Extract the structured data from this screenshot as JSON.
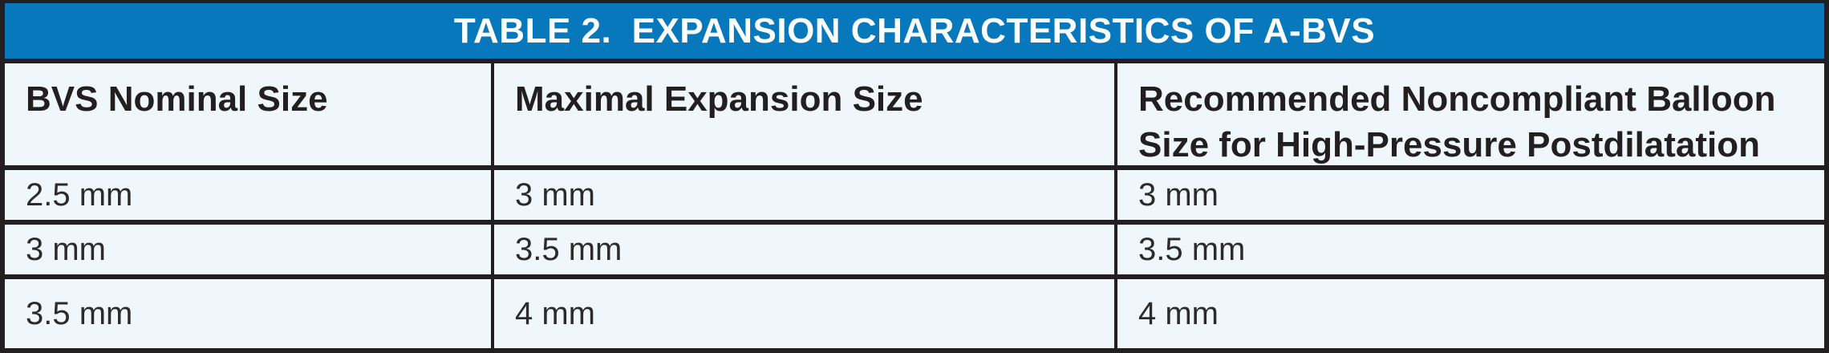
{
  "chart_data": {
    "type": "table",
    "title": "TABLE 2.  EXPANSION CHARACTERISTICS OF A-BVS",
    "columns": [
      "BVS Nominal Size",
      "Maximal Expansion Size",
      "Recommended Noncompliant Balloon Size for High-Pressure Postdilatation"
    ],
    "rows": [
      [
        "2.5 mm",
        "3 mm",
        "3 mm"
      ],
      [
        "3 mm",
        "3.5 mm",
        "3.5 mm"
      ],
      [
        "3.5 mm",
        "4 mm",
        "4 mm"
      ]
    ]
  },
  "table": {
    "title": "TABLE 2.  EXPANSION CHARACTERISTICS OF A-BVS",
    "headers": [
      "BVS Nominal Size",
      "Maximal Expansion Size",
      "Recommended Noncompliant Balloon Size for High-Pressure Postdilatation"
    ],
    "rows": [
      [
        "2.5 mm",
        "3 mm",
        "3 mm"
      ],
      [
        "3 mm",
        "3.5 mm",
        "3.5 mm"
      ],
      [
        "3.5 mm",
        "4 mm",
        "4 mm"
      ]
    ],
    "colors": {
      "title_bar_bg": "#0878bc",
      "title_text": "#ffffff",
      "cell_bg": "#f0f7fa",
      "border": "#231f20",
      "header_text": "#231f20",
      "body_text": "#2d2a2b"
    }
  }
}
